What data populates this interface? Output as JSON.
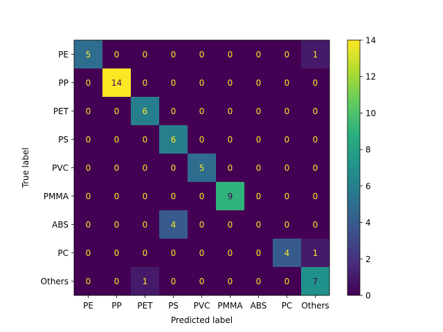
{
  "chart_data": {
    "type": "heatmap",
    "title": "",
    "xlabel": "Predicted label",
    "ylabel": "True label",
    "x_categories": [
      "PE",
      "PP",
      "PET",
      "PS",
      "PVC",
      "PMMA",
      "ABS",
      "PC",
      "Others"
    ],
    "y_categories": [
      "PE",
      "PP",
      "PET",
      "PS",
      "PVC",
      "PMMA",
      "ABS",
      "PC",
      "Others"
    ],
    "values": [
      [
        5,
        0,
        0,
        0,
        0,
        0,
        0,
        0,
        1
      ],
      [
        0,
        14,
        0,
        0,
        0,
        0,
        0,
        0,
        0
      ],
      [
        0,
        0,
        6,
        0,
        0,
        0,
        0,
        0,
        0
      ],
      [
        0,
        0,
        0,
        6,
        0,
        0,
        0,
        0,
        0
      ],
      [
        0,
        0,
        0,
        0,
        5,
        0,
        0,
        0,
        0
      ],
      [
        0,
        0,
        0,
        0,
        0,
        9,
        0,
        0,
        0
      ],
      [
        0,
        0,
        0,
        4,
        0,
        0,
        0,
        0,
        0
      ],
      [
        0,
        0,
        0,
        0,
        0,
        0,
        0,
        4,
        1
      ],
      [
        0,
        0,
        1,
        0,
        0,
        0,
        0,
        0,
        7
      ]
    ],
    "colorbar": {
      "range": [
        0,
        14
      ],
      "ticks": [
        "0",
        "2",
        "4",
        "6",
        "8",
        "10",
        "12",
        "14"
      ],
      "colormap": "viridis"
    },
    "grid": false,
    "text_color_dark": "#440154",
    "text_color_light": "#fde725"
  }
}
